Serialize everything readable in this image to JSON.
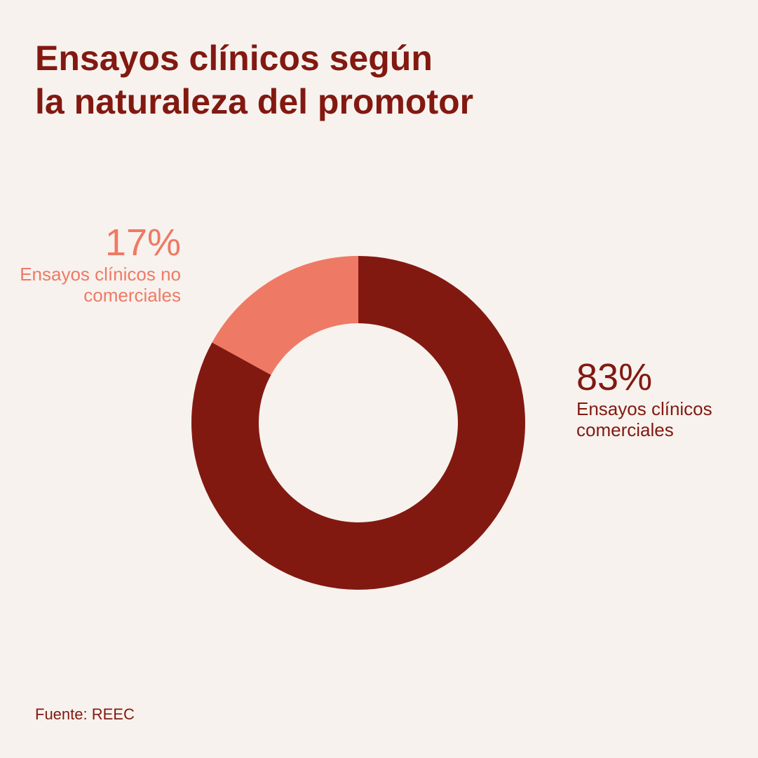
{
  "chart_data": {
    "type": "pie",
    "title": [
      "Ensayos clínicos según",
      "la naturaleza del promotor"
    ],
    "categories": [
      "Ensayos clínicos comerciales",
      "Ensayos clínicos no comerciales"
    ],
    "values": [
      83,
      17
    ],
    "value_labels": [
      "83%",
      "17%"
    ],
    "colors": [
      "#821911",
      "#ee7a65"
    ],
    "source": "Fuente: REEC"
  }
}
